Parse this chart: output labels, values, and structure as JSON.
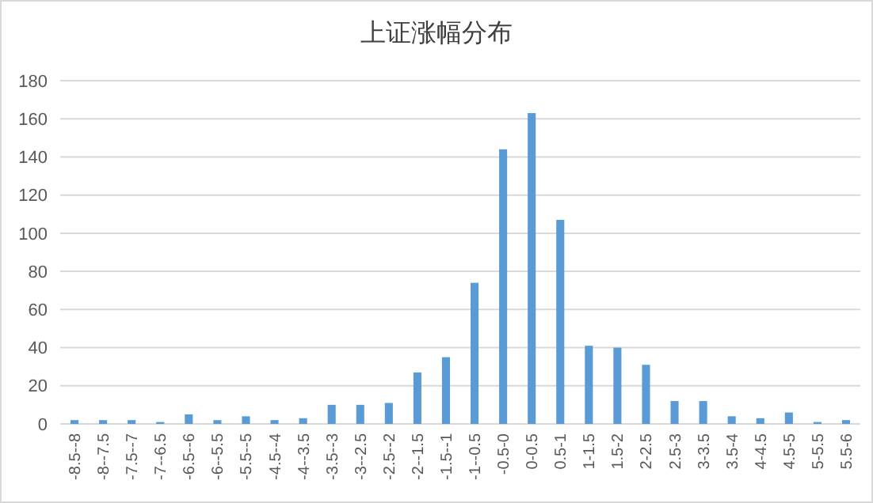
{
  "chart_data": {
    "type": "bar",
    "title": "上证涨幅分布",
    "categories": [
      "-8.5--8",
      "-8--7.5",
      "-7.5--7",
      "-7--6.5",
      "-6.5--6",
      "-6--5.5",
      "-5.5--5",
      "-4.5--4",
      "-4--3.5",
      "-3.5--3",
      "-3--2.5",
      "-2.5--2",
      "-2--1.5",
      "-1.5--1",
      "-1--0.5",
      "-0.5-0",
      "0-0.5",
      "0.5-1",
      "1-1.5",
      "1.5-2",
      "2-2.5",
      "2.5-3",
      "3-3.5",
      "3.5-4",
      "4-4.5",
      "4.5-5",
      "5-5.5",
      "5.5-6"
    ],
    "values": [
      2,
      2,
      2,
      1,
      5,
      2,
      4,
      2,
      3,
      10,
      10,
      11,
      27,
      35,
      74,
      144,
      163,
      107,
      41,
      40,
      31,
      12,
      12,
      4,
      3,
      6,
      1,
      2
    ],
    "color": "#5b9bd5",
    "ylim": [
      0,
      180
    ],
    "yticks": [
      0,
      20,
      40,
      60,
      80,
      100,
      120,
      140,
      160,
      180
    ],
    "grid": "y"
  }
}
